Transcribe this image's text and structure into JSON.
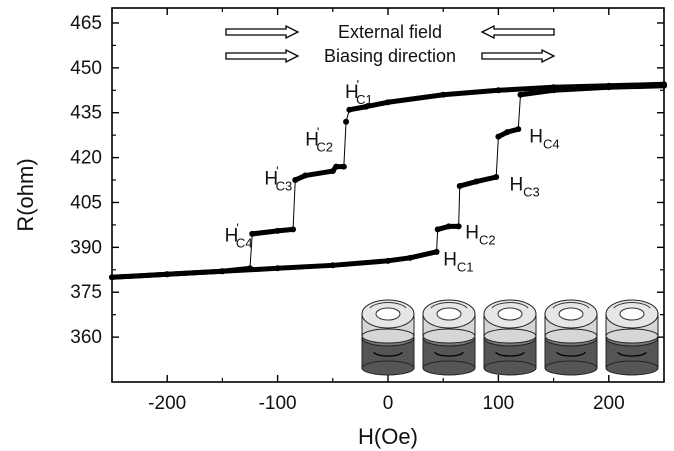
{
  "chart_data": {
    "type": "line",
    "xlabel": "H(Oe)",
    "ylabel": "R(ohm)",
    "xlim": [
      -250,
      250
    ],
    "ylim": [
      345,
      470
    ],
    "xticks": [
      -200,
      -100,
      0,
      100,
      200
    ],
    "yticks": [
      360,
      375,
      390,
      405,
      420,
      435,
      450,
      465
    ],
    "legend": [
      {
        "label": "External field",
        "arrows": "right-left"
      },
      {
        "label": "Biasing direction",
        "arrows": "right-right"
      }
    ],
    "series": [
      {
        "direction": "increasing field",
        "x": [
          -250,
          -200,
          -150,
          -100,
          -50,
          0,
          20,
          44,
          45,
          55,
          64,
          65,
          80,
          98,
          100,
          108,
          118,
          120,
          150,
          200,
          250
        ],
        "y": [
          380,
          381,
          382,
          383,
          384,
          385.5,
          386.5,
          388.5,
          396,
          397,
          397,
          410.5,
          412,
          413.5,
          427,
          428.5,
          429.5,
          441,
          442.5,
          443.5,
          444
        ]
      },
      {
        "direction": "decreasing field",
        "x": [
          250,
          200,
          150,
          100,
          50,
          0,
          -20,
          -35,
          -38,
          -40,
          -47,
          -50,
          -75,
          -84,
          -86,
          -100,
          -123,
          -125,
          -150,
          -200,
          -250
        ],
        "y": [
          444.5,
          444,
          443.5,
          442.5,
          441,
          438.5,
          437,
          436,
          432,
          417,
          417,
          415.5,
          414,
          412.5,
          396,
          395.5,
          394.5,
          383,
          382,
          381,
          380
        ]
      }
    ],
    "annotations": [
      {
        "label": "H",
        "subscript": "C1",
        "prime": true,
        "x": -39,
        "y": 440
      },
      {
        "label": "H",
        "subscript": "C2",
        "prime": true,
        "x": -75,
        "y": 424
      },
      {
        "label": "H",
        "subscript": "C3",
        "prime": true,
        "x": -112,
        "y": 411
      },
      {
        "label": "H",
        "subscript": "C4",
        "prime": true,
        "x": -148,
        "y": 392
      },
      {
        "label": "H",
        "subscript": "C1",
        "prime": false,
        "x": 50,
        "y": 384
      },
      {
        "label": "H",
        "subscript": "C2",
        "prime": false,
        "x": 70,
        "y": 393
      },
      {
        "label": "H",
        "subscript": "C3",
        "prime": false,
        "x": 110,
        "y": 409
      },
      {
        "label": "H",
        "subscript": "C4",
        "prime": false,
        "x": 128,
        "y": 425
      }
    ],
    "grid": false,
    "inset": {
      "description": "five stacked ring layer illustrations",
      "count": 5
    }
  }
}
